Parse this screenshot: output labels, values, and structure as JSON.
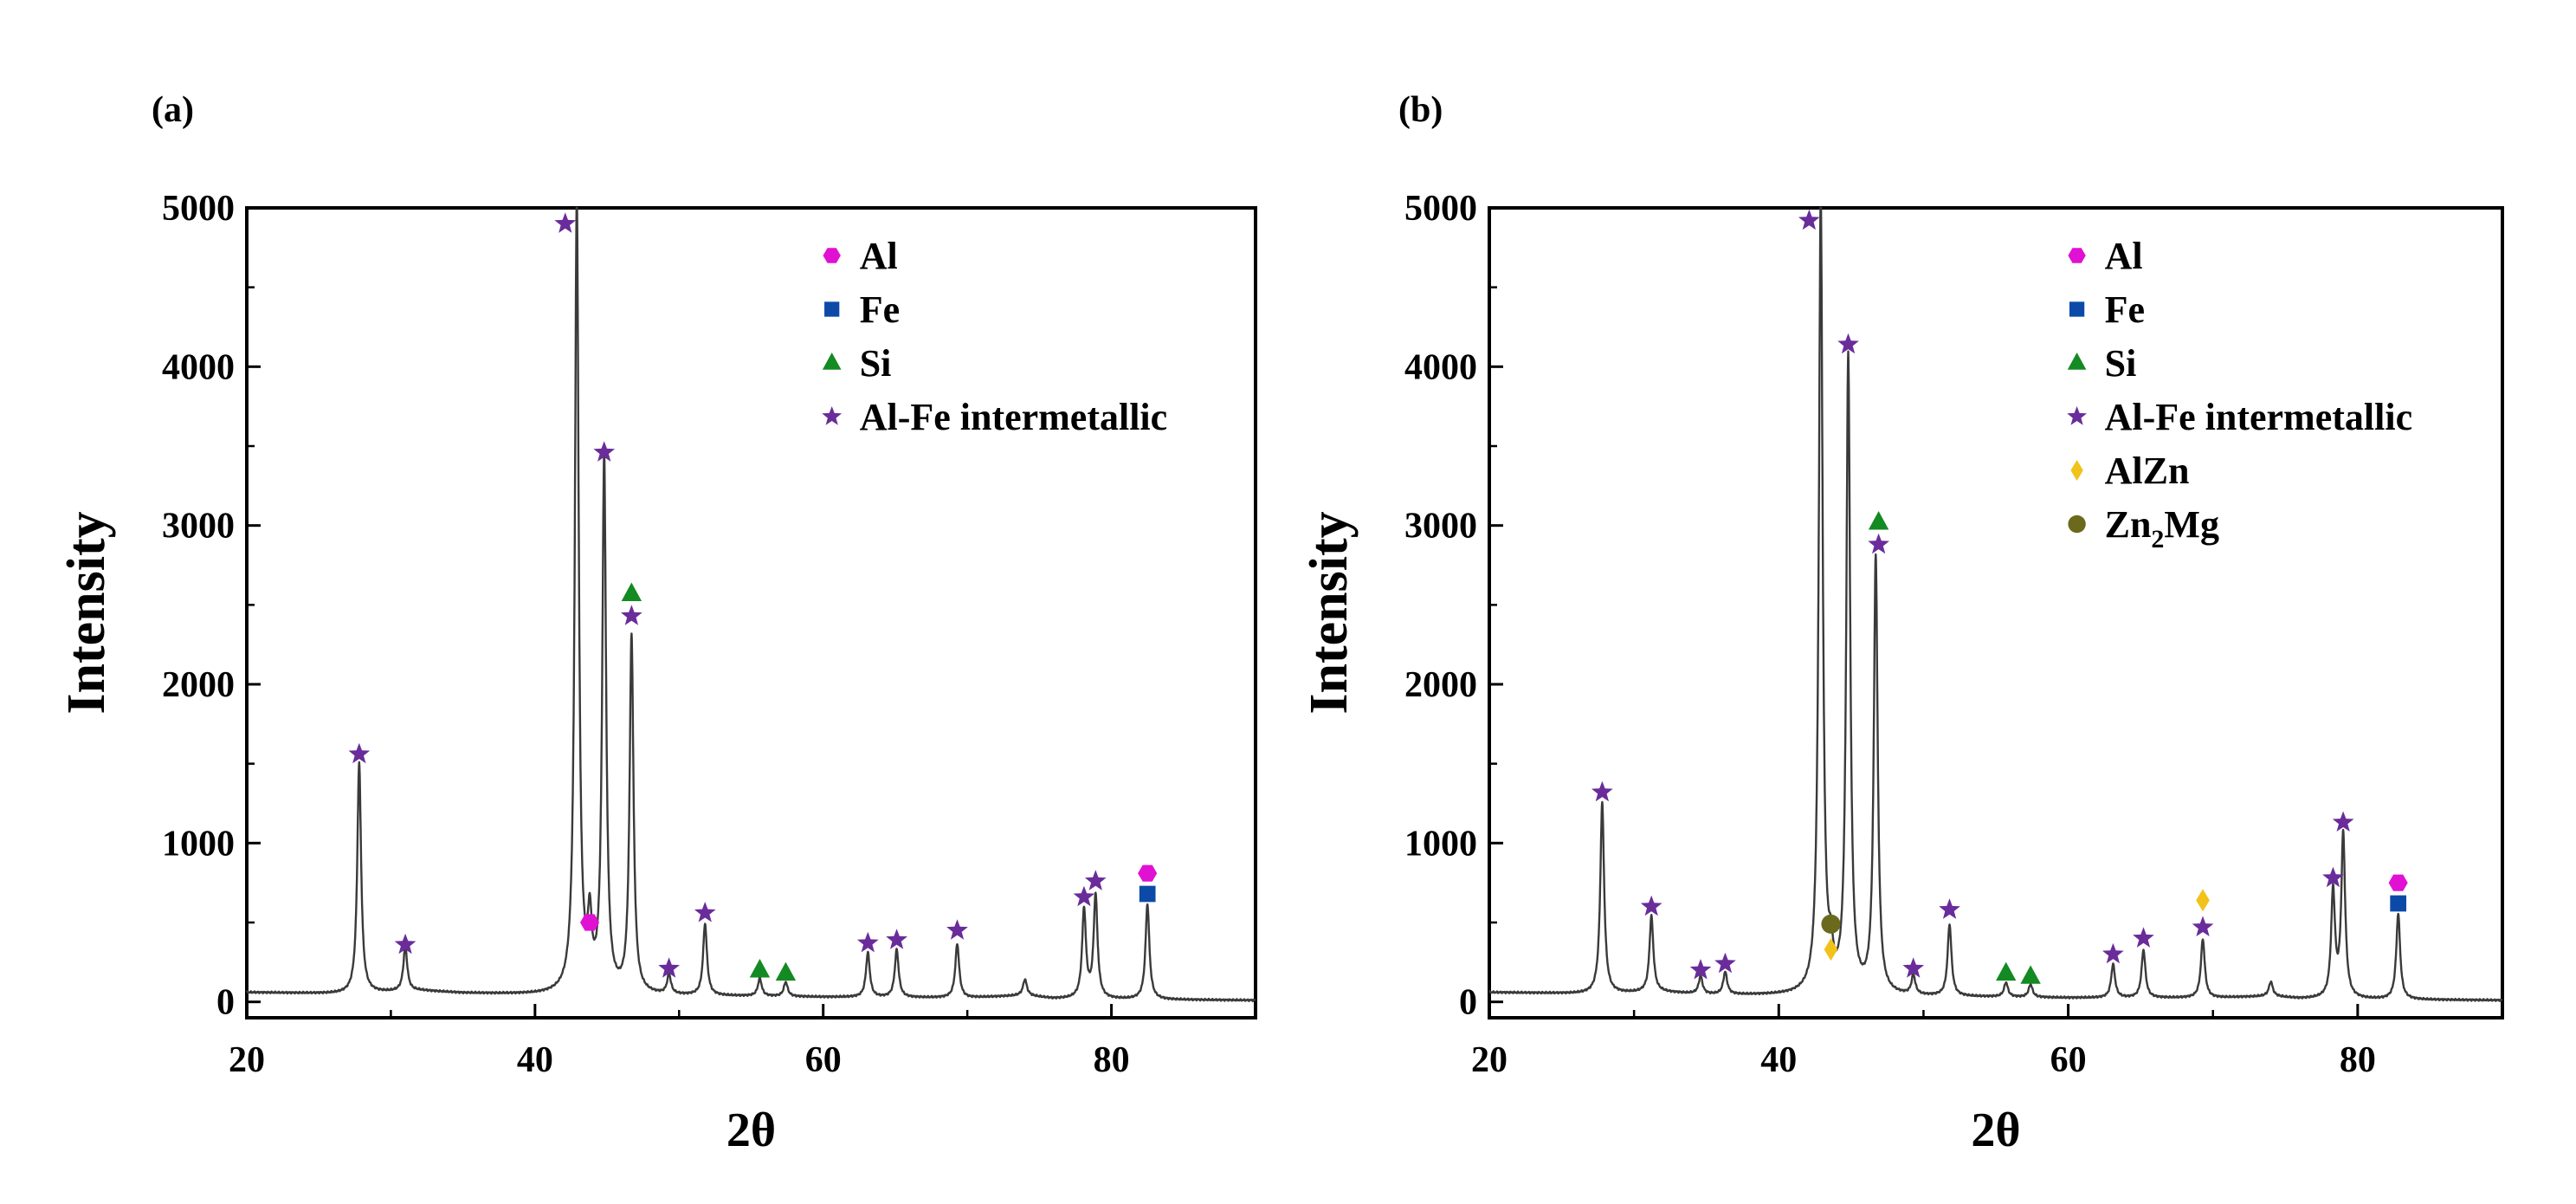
{
  "chart_data": [
    {
      "panel_label": "(a)",
      "type": "line",
      "xlabel": "2θ",
      "ylabel": "Intensity",
      "xlim": [
        20,
        90
      ],
      "ylim": [
        -100,
        5000
      ],
      "xticks": [
        "20",
        "40",
        "60",
        "80"
      ],
      "xtick_values": [
        20,
        40,
        60,
        80
      ],
      "yticks": [
        "0",
        "1000",
        "2000",
        "3000",
        "4000",
        "5000"
      ],
      "ytick_values": [
        0,
        1000,
        2000,
        3000,
        4000,
        5000
      ],
      "grid": false,
      "legend_position": "top-right",
      "baseline": [
        [
          20,
          60
        ],
        [
          24,
          55
        ],
        [
          27,
          50
        ],
        [
          32,
          70
        ],
        [
          35,
          55
        ],
        [
          40,
          45
        ],
        [
          48,
          40
        ],
        [
          55,
          35
        ],
        [
          60,
          30
        ],
        [
          70,
          25
        ],
        [
          74,
          40
        ],
        [
          76,
          20
        ],
        [
          82,
          15
        ],
        [
          90,
          10
        ]
      ],
      "peaks": [
        {
          "x": 27.8,
          "y": 1450
        },
        {
          "x": 31.0,
          "y": 280
        },
        {
          "x": 42.9,
          "y": 5000
        },
        {
          "x": 43.8,
          "y": 400
        },
        {
          "x": 44.8,
          "y": 3350
        },
        {
          "x": 46.7,
          "y": 2250
        },
        {
          "x": 49.3,
          "y": 120
        },
        {
          "x": 51.8,
          "y": 450
        },
        {
          "x": 55.6,
          "y": 110
        },
        {
          "x": 57.4,
          "y": 90
        },
        {
          "x": 63.1,
          "y": 280
        },
        {
          "x": 65.1,
          "y": 300
        },
        {
          "x": 69.3,
          "y": 340
        },
        {
          "x": 74.0,
          "y": 100
        },
        {
          "x": 78.1,
          "y": 560
        },
        {
          "x": 78.9,
          "y": 650
        },
        {
          "x": 82.5,
          "y": 600
        }
      ],
      "markers": [
        {
          "symbol": "star",
          "x": 27.8,
          "y": 1560
        },
        {
          "symbol": "star",
          "x": 31.0,
          "y": 360
        },
        {
          "symbol": "star",
          "x": 42.1,
          "y": 4900
        },
        {
          "symbol": "hexagon",
          "x": 43.8,
          "y": 500
        },
        {
          "symbol": "star",
          "x": 44.8,
          "y": 3460
        },
        {
          "symbol": "triangle",
          "x": 46.7,
          "y": 2570
        },
        {
          "symbol": "star",
          "x": 46.7,
          "y": 2430
        },
        {
          "symbol": "star",
          "x": 49.3,
          "y": 210
        },
        {
          "symbol": "star",
          "x": 51.8,
          "y": 560
        },
        {
          "symbol": "triangle",
          "x": 55.6,
          "y": 200
        },
        {
          "symbol": "triangle",
          "x": 57.4,
          "y": 180
        },
        {
          "symbol": "star",
          "x": 63.1,
          "y": 370
        },
        {
          "symbol": "star",
          "x": 65.1,
          "y": 390
        },
        {
          "symbol": "star",
          "x": 69.3,
          "y": 450
        },
        {
          "symbol": "star",
          "x": 78.1,
          "y": 660
        },
        {
          "symbol": "star",
          "x": 78.9,
          "y": 760
        },
        {
          "symbol": "hexagon",
          "x": 82.5,
          "y": 810
        },
        {
          "symbol": "square",
          "x": 82.5,
          "y": 680
        }
      ],
      "legend": [
        {
          "symbol": "hexagon",
          "label": "Al",
          "color": "#e011d3"
        },
        {
          "symbol": "square",
          "label": "Fe",
          "color": "#0d4aa8"
        },
        {
          "symbol": "triangle",
          "label": "Si",
          "color": "#138a22"
        },
        {
          "symbol": "star",
          "label": "Al-Fe intermetallic",
          "color": "#6a2c9a"
        }
      ]
    },
    {
      "panel_label": "(b)",
      "type": "line",
      "xlabel": "2θ",
      "ylabel": "Intensity",
      "xlim": [
        20,
        90
      ],
      "ylim": [
        -100,
        5000
      ],
      "xticks": [
        "20",
        "40",
        "60",
        "80"
      ],
      "xtick_values": [
        20,
        40,
        60,
        80
      ],
      "yticks": [
        "0",
        "1000",
        "2000",
        "3000",
        "4000",
        "5000"
      ],
      "ytick_values": [
        0,
        1000,
        2000,
        3000,
        4000,
        5000
      ],
      "grid": false,
      "legend_position": "top-right",
      "baseline": [
        [
          20,
          60
        ],
        [
          24,
          55
        ],
        [
          27,
          50
        ],
        [
          32,
          60
        ],
        [
          35,
          45
        ],
        [
          40,
          40
        ],
        [
          48,
          35
        ],
        [
          55,
          30
        ],
        [
          60,
          25
        ],
        [
          70,
          25
        ],
        [
          74,
          35
        ],
        [
          76,
          20
        ],
        [
          82,
          15
        ],
        [
          90,
          10
        ]
      ],
      "peaks": [
        {
          "x": 27.8,
          "y": 1200
        },
        {
          "x": 31.2,
          "y": 480
        },
        {
          "x": 34.6,
          "y": 110
        },
        {
          "x": 36.3,
          "y": 140
        },
        {
          "x": 42.9,
          "y": 5000
        },
        {
          "x": 43.6,
          "y": 180
        },
        {
          "x": 44.8,
          "y": 4000
        },
        {
          "x": 46.7,
          "y": 2750
        },
        {
          "x": 49.3,
          "y": 120
        },
        {
          "x": 51.8,
          "y": 450
        },
        {
          "x": 55.7,
          "y": 90
        },
        {
          "x": 57.4,
          "y": 80
        },
        {
          "x": 63.1,
          "y": 210
        },
        {
          "x": 65.2,
          "y": 300
        },
        {
          "x": 69.3,
          "y": 370
        },
        {
          "x": 74.0,
          "y": 90
        },
        {
          "x": 78.3,
          "y": 670
        },
        {
          "x": 79.0,
          "y": 1030
        },
        {
          "x": 82.8,
          "y": 540
        }
      ],
      "markers": [
        {
          "symbol": "star",
          "x": 27.8,
          "y": 1320
        },
        {
          "symbol": "star",
          "x": 31.2,
          "y": 600
        },
        {
          "symbol": "star",
          "x": 34.6,
          "y": 200
        },
        {
          "symbol": "star",
          "x": 36.3,
          "y": 240
        },
        {
          "symbol": "star",
          "x": 42.1,
          "y": 4920
        },
        {
          "symbol": "circle",
          "x": 43.6,
          "y": 490
        },
        {
          "symbol": "diamond",
          "x": 43.6,
          "y": 330
        },
        {
          "symbol": "star",
          "x": 44.8,
          "y": 4140
        },
        {
          "symbol": "triangle",
          "x": 46.9,
          "y": 3020
        },
        {
          "symbol": "star",
          "x": 46.9,
          "y": 2880
        },
        {
          "symbol": "star",
          "x": 49.3,
          "y": 210
        },
        {
          "symbol": "star",
          "x": 51.8,
          "y": 580
        },
        {
          "symbol": "triangle",
          "x": 55.7,
          "y": 180
        },
        {
          "symbol": "triangle",
          "x": 57.4,
          "y": 160
        },
        {
          "symbol": "star",
          "x": 63.1,
          "y": 300
        },
        {
          "symbol": "star",
          "x": 65.2,
          "y": 400
        },
        {
          "symbol": "diamond",
          "x": 69.3,
          "y": 640
        },
        {
          "symbol": "star",
          "x": 69.3,
          "y": 470
        },
        {
          "symbol": "star",
          "x": 78.3,
          "y": 780
        },
        {
          "symbol": "star",
          "x": 79.0,
          "y": 1130
        },
        {
          "symbol": "hexagon",
          "x": 82.8,
          "y": 750
        },
        {
          "symbol": "square",
          "x": 82.8,
          "y": 620
        }
      ],
      "legend": [
        {
          "symbol": "hexagon",
          "label": "Al",
          "color": "#e011d3"
        },
        {
          "symbol": "square",
          "label": "Fe",
          "color": "#0d4aa8"
        },
        {
          "symbol": "triangle",
          "label": "Si",
          "color": "#138a22"
        },
        {
          "symbol": "star",
          "label": "Al-Fe intermetallic",
          "color": "#6a2c9a"
        },
        {
          "symbol": "diamond",
          "label": "AlZn",
          "color": "#f2c21a"
        },
        {
          "symbol": "circle",
          "label": "Zn2Mg",
          "label_main": "Zn",
          "label_sub": "2",
          "label_rest": "Mg",
          "color": "#6b6a1c"
        }
      ]
    }
  ]
}
